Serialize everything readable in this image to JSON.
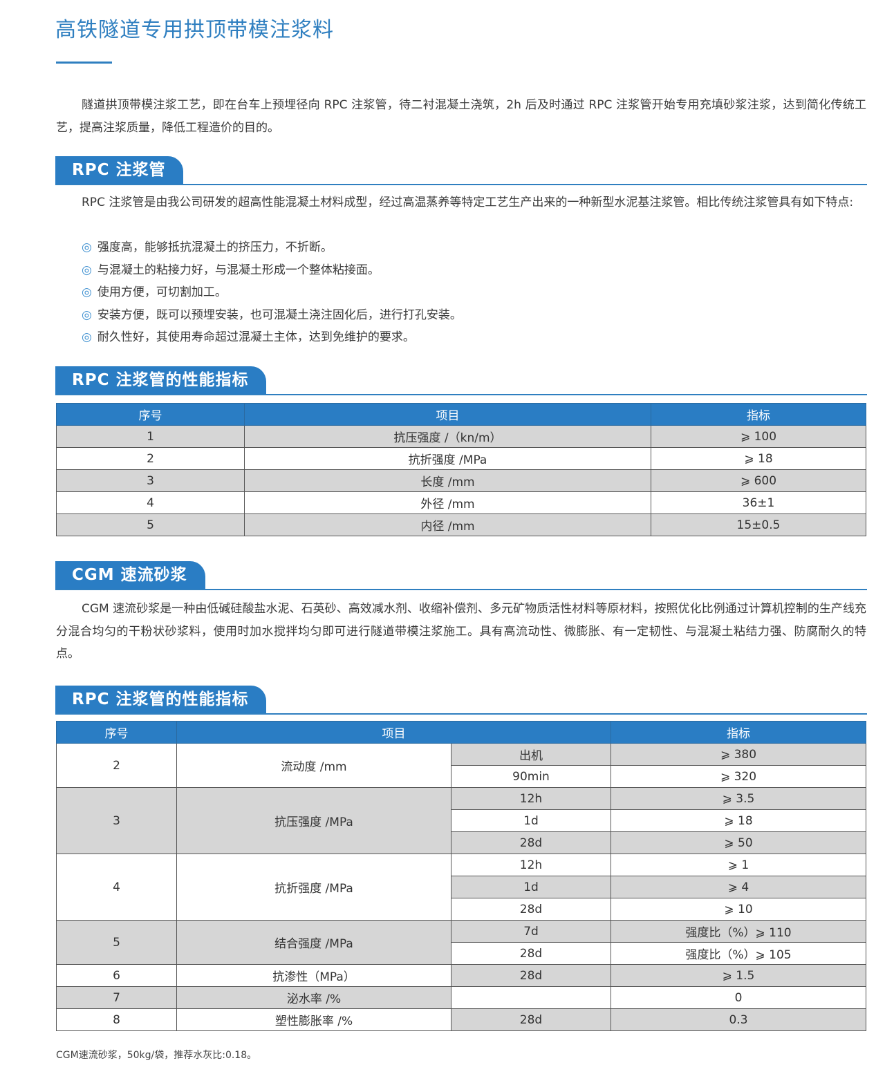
{
  "title": "高铁隧道专用拱顶带模注浆料",
  "intro": "隧道拱顶带模注浆工艺，即在台车上预埋径向 RPC 注浆管，待二衬混凝土浇筑，2h 后及时通过 RPC 注浆管开始专用充填砂浆注浆，达到简化传统工艺，提高注浆质量，降低工程造价的目的。",
  "sections": [
    {
      "heading": "RPC 注浆管",
      "text": "RPC 注浆管是由我公司研发的超高性能混凝土材料成型，经过高温蒸养等特定工艺生产出来的一种新型水泥基注浆管。相比传统注浆管具有如下特点:",
      "bullet_icon": "◎",
      "bullets": [
        "强度高，能够抵抗混凝土的挤压力，不折断。",
        "与混凝土的粘接力好，与混凝土形成一个整体粘接面。",
        "使用方便，可切割加工。",
        "安装方便，既可以预埋安装，也可混凝土浇注固化后，进行打孔安装。",
        "耐久性好，其使用寿命超过混凝土主体，达到免维护的要求。"
      ]
    },
    {
      "heading": "RPC 注浆管的性能指标"
    },
    {
      "heading": "CGM 速流砂浆",
      "text": "CGM 速流砂浆是一种由低碱硅酸盐水泥、石英砂、高效减水剂、收缩补偿剂、多元矿物质活性材料等原材料，按照优化比例通过计算机控制的生产线充分混合均匀的干粉状砂浆料，使用时加水搅拌均匀即可进行隧道带模注浆施工。具有高流动性、微膨胀、有一定韧性、与混凝土粘结力强、防腐耐久的特点。"
    },
    {
      "heading": "RPC 注浆管的性能指标"
    }
  ],
  "table1": {
    "headers": [
      "序号",
      "项目",
      "指标"
    ],
    "rows": [
      [
        "1",
        "抗压强度 /（kn/m）",
        "⩾ 100"
      ],
      [
        "2",
        "抗折强度 /MPa",
        "⩾ 18"
      ],
      [
        "3",
        "长度 /mm",
        "⩾ 600"
      ],
      [
        "4",
        "外径 /mm",
        "36±1"
      ],
      [
        "5",
        "内径 /mm",
        "15±0.5"
      ]
    ]
  },
  "table2": {
    "headers": [
      "序号",
      "项目",
      "指标"
    ],
    "groups": [
      {
        "no": "2",
        "item": "流动度 /mm",
        "subs": [
          [
            "出机",
            "⩾ 380"
          ],
          [
            "90min",
            "⩾ 320"
          ]
        ]
      },
      {
        "no": "3",
        "item": "抗压强度 /MPa",
        "subs": [
          [
            "12h",
            "⩾ 3.5"
          ],
          [
            "1d",
            "⩾ 18"
          ],
          [
            "28d",
            "⩾ 50"
          ]
        ]
      },
      {
        "no": "4",
        "item": "抗折强度 /MPa",
        "subs": [
          [
            "12h",
            "⩾ 1"
          ],
          [
            "1d",
            "⩾ 4"
          ],
          [
            "28d",
            "⩾ 10"
          ]
        ]
      },
      {
        "no": "5",
        "item": "结合强度 /MPa",
        "subs": [
          [
            "7d",
            "强度比（%）⩾ 110"
          ],
          [
            "28d",
            "强度比（%）⩾ 105"
          ]
        ]
      },
      {
        "no": "6",
        "item": "抗渗性（MPa）",
        "subs": [
          [
            "28d",
            "⩾ 1.5"
          ]
        ]
      },
      {
        "no": "7",
        "item": "泌水率 /%",
        "subs": [
          [
            "",
            "0"
          ]
        ]
      },
      {
        "no": "8",
        "item": "塑性膨胀率 /%",
        "subs": [
          [
            "28d",
            "0.3"
          ]
        ]
      }
    ]
  },
  "note": "CGM速流砂浆，50kg/袋，推荐水灰比:0.18。",
  "colors": {
    "accent": "#2a7dc4",
    "row_shade": "#d6d6d6"
  }
}
